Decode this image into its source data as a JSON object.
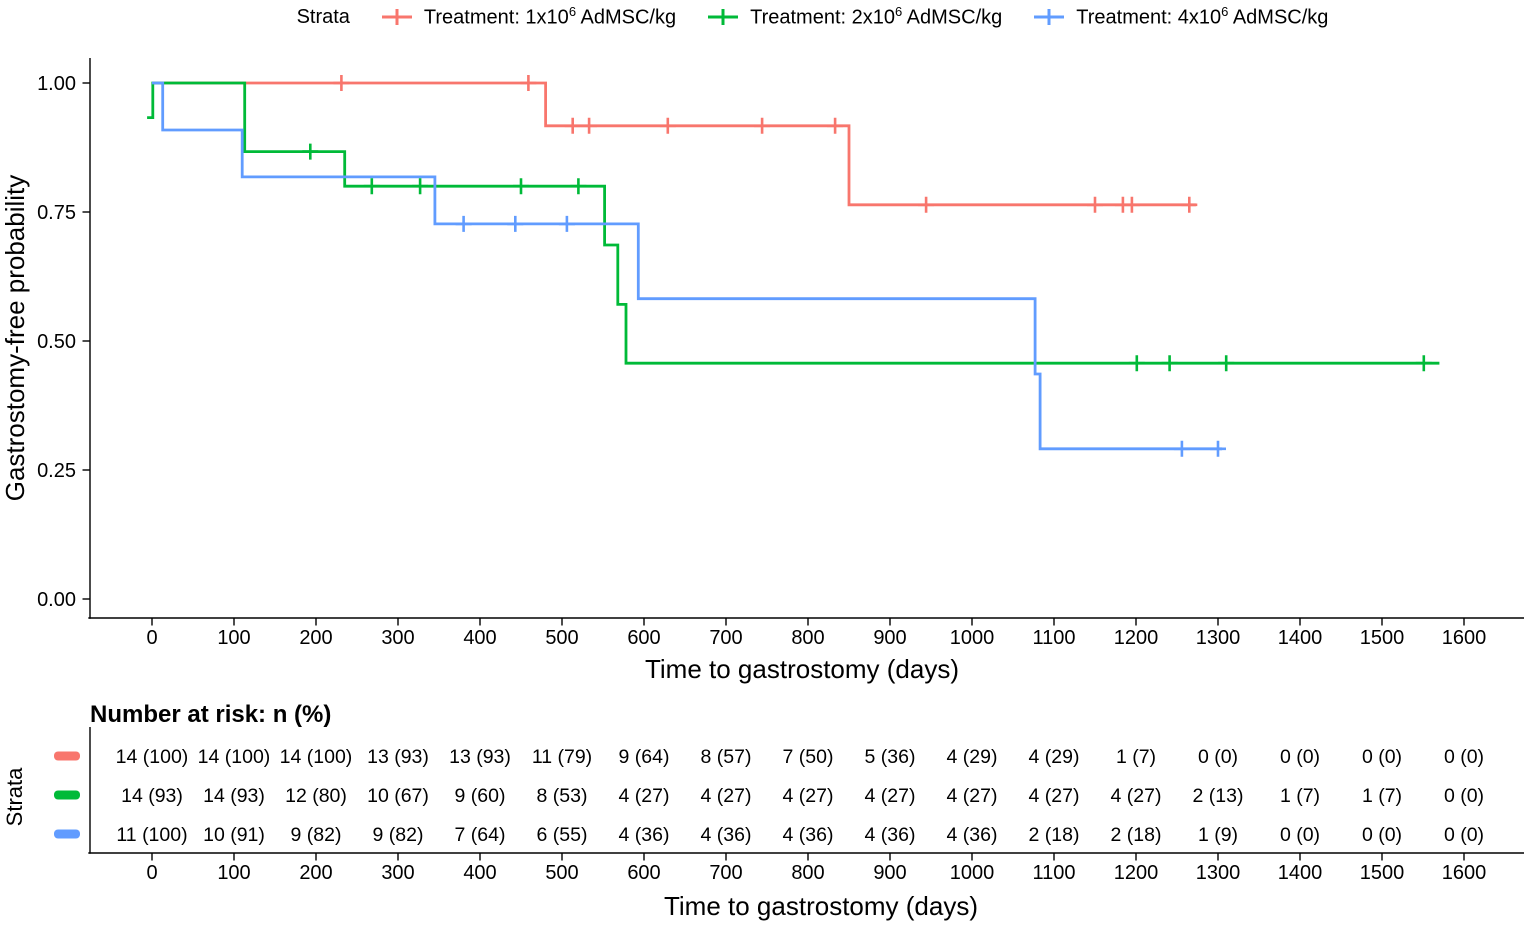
{
  "legend": {
    "title": "Strata",
    "items": [
      {
        "pre": "Treatment: 1x10",
        "sup": "6",
        "post": " AdMSC/kg",
        "color": "#F8766D"
      },
      {
        "pre": "Treatment: 2x10",
        "sup": "6",
        "post": " AdMSC/kg",
        "color": "#00BA38"
      },
      {
        "pre": "Treatment: 4x10",
        "sup": "6",
        "post": " AdMSC/kg",
        "color": "#619CFF"
      }
    ]
  },
  "plot": {
    "x_title": "Time to gastrostomy (days)",
    "y_title": "Gastrostomy-free probability",
    "y_ticks": [
      {
        "value": 1.0,
        "label": "1.00"
      },
      {
        "value": 0.75,
        "label": "0.75"
      },
      {
        "value": 0.5,
        "label": "0.50"
      },
      {
        "value": 0.25,
        "label": "0.25"
      },
      {
        "value": 0.0,
        "label": "0.00"
      }
    ],
    "x_ticks": [
      0,
      100,
      200,
      300,
      400,
      500,
      600,
      700,
      800,
      900,
      1000,
      1100,
      1200,
      1300,
      1400,
      1500,
      1600
    ]
  },
  "risk_table": {
    "title": "Number at risk: n (%)",
    "y_label": "Strata",
    "x_title": "Time to gastrostomy (days)",
    "x_ticks": [
      0,
      100,
      200,
      300,
      400,
      500,
      600,
      700,
      800,
      900,
      1000,
      1100,
      1200,
      1300,
      1400,
      1500,
      1600
    ],
    "rows": [
      {
        "color": "#F8766D",
        "values": [
          "14 (100)",
          "14 (100)",
          "14 (100)",
          "13 (93)",
          "13 (93)",
          "11 (79)",
          "9 (64)",
          "8 (57)",
          "7 (50)",
          "5 (36)",
          "4 (29)",
          "4 (29)",
          "1 (7)",
          "0 (0)",
          "0 (0)",
          "0 (0)",
          "0 (0)"
        ]
      },
      {
        "color": "#00BA38",
        "values": [
          "14 (93)",
          "14 (93)",
          "12 (80)",
          "10 (67)",
          "9 (60)",
          "8 (53)",
          "4 (27)",
          "4 (27)",
          "4 (27)",
          "4 (27)",
          "4 (27)",
          "4 (27)",
          "4 (27)",
          "2 (13)",
          "1 (7)",
          "1 (7)",
          "0 (0)"
        ]
      },
      {
        "color": "#619CFF",
        "values": [
          "11 (100)",
          "10 (91)",
          "9 (82)",
          "9 (82)",
          "7 (64)",
          "6 (55)",
          "4 (36)",
          "4 (36)",
          "4 (36)",
          "4 (36)",
          "4 (36)",
          "2 (18)",
          "2 (18)",
          "1 (9)",
          "0 (0)",
          "0 (0)",
          "0 (0)"
        ]
      }
    ]
  },
  "chart_data": {
    "type": "line",
    "subtype": "kaplan-meier-step",
    "title": "",
    "xlabel": "Time to gastrostomy (days)",
    "ylabel": "Gastrostomy-free probability",
    "xlim": [
      0,
      1600
    ],
    "ylim": [
      0,
      1
    ],
    "grid": false,
    "legend_position": "top",
    "series": [
      {
        "name": "Treatment: 1x10⁶ AdMSC/kg",
        "color": "#F8766D",
        "steps": [
          [
            0,
            1.0
          ],
          [
            480,
            1.0
          ],
          [
            480,
            0.917
          ],
          [
            850,
            0.917
          ],
          [
            850,
            0.764
          ],
          [
            1273,
            0.764
          ]
        ],
        "censors": [
          [
            231,
            1.0
          ],
          [
            459,
            1.0
          ],
          [
            513,
            0.917
          ],
          [
            533,
            0.917
          ],
          [
            629,
            0.917
          ],
          [
            744,
            0.917
          ],
          [
            833,
            0.917
          ],
          [
            944,
            0.764
          ],
          [
            1150,
            0.764
          ],
          [
            1184,
            0.764
          ],
          [
            1195,
            0.764
          ],
          [
            1265,
            0.764
          ]
        ]
      },
      {
        "name": "Treatment: 2x10⁶ AdMSC/kg",
        "color": "#00BA38",
        "steps": [
          [
            -6,
            0.933
          ],
          [
            1,
            0.933
          ],
          [
            1,
            1.0
          ],
          [
            113,
            1.0
          ],
          [
            113,
            0.867
          ],
          [
            235,
            0.867
          ],
          [
            235,
            0.8
          ],
          [
            552,
            0.8
          ],
          [
            552,
            0.686
          ],
          [
            568,
            0.686
          ],
          [
            568,
            0.571
          ],
          [
            578,
            0.571
          ],
          [
            578,
            0.457
          ],
          [
            1570,
            0.457
          ]
        ],
        "censors": [
          [
            193,
            0.867
          ],
          [
            268,
            0.8
          ],
          [
            327,
            0.8
          ],
          [
            450,
            0.8
          ],
          [
            520,
            0.8
          ],
          [
            1201,
            0.457
          ],
          [
            1241,
            0.457
          ],
          [
            1310,
            0.457
          ],
          [
            1551,
            0.457
          ]
        ]
      },
      {
        "name": "Treatment: 4x10⁶ AdMSC/kg",
        "color": "#619CFF",
        "steps": [
          [
            0,
            1.0
          ],
          [
            13,
            1.0
          ],
          [
            13,
            0.909
          ],
          [
            110,
            0.909
          ],
          [
            110,
            0.818
          ],
          [
            345,
            0.818
          ],
          [
            345,
            0.727
          ],
          [
            593,
            0.727
          ],
          [
            593,
            0.582
          ],
          [
            1077,
            0.582
          ],
          [
            1077,
            0.436
          ],
          [
            1083,
            0.436
          ],
          [
            1083,
            0.291
          ],
          [
            1305,
            0.291
          ]
        ],
        "censors": [
          [
            380,
            0.727
          ],
          [
            443,
            0.727
          ],
          [
            506,
            0.727
          ],
          [
            1256,
            0.291
          ],
          [
            1300,
            0.291
          ]
        ]
      }
    ]
  }
}
